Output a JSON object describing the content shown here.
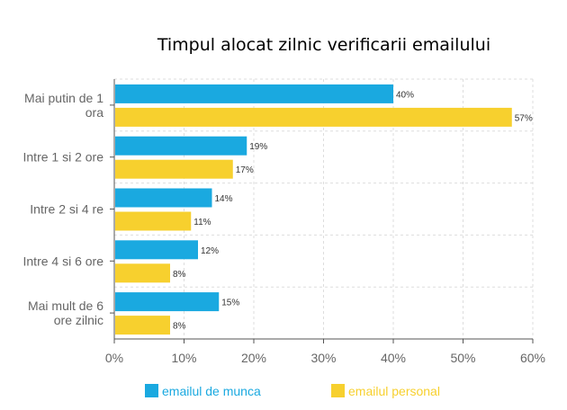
{
  "chart_data": {
    "type": "bar",
    "orientation": "horizontal",
    "title": "Timpul alocat zilnic verificarii emailului",
    "categories": [
      [
        "Mai putin de 1",
        "ora"
      ],
      [
        "Intre 1 si 2 ore"
      ],
      [
        "Intre 2 si 4 re"
      ],
      [
        "Intre 4 si 6 ore"
      ],
      [
        "Mai mult de 6",
        "ore zilnic"
      ]
    ],
    "series": [
      {
        "name": "emailul de munca",
        "color": "#1AA9E0",
        "values": [
          40,
          19,
          14,
          12,
          15
        ],
        "labels": [
          "40%",
          "19%",
          "14%",
          "12%",
          "15%"
        ]
      },
      {
        "name": "emailul personal",
        "color": "#F7D02E",
        "values": [
          57,
          17,
          11,
          8,
          8
        ],
        "labels": [
          "57%",
          "17%",
          "11%",
          "8%",
          "8%"
        ]
      }
    ],
    "x_ticks": [
      0,
      10,
      20,
      30,
      40,
      50,
      60
    ],
    "x_tick_labels": [
      "0%",
      "10%",
      "20%",
      "30%",
      "40%",
      "50%",
      "60%"
    ],
    "xlim": [
      0,
      60
    ],
    "grid": true,
    "legend_position": "bottom"
  }
}
